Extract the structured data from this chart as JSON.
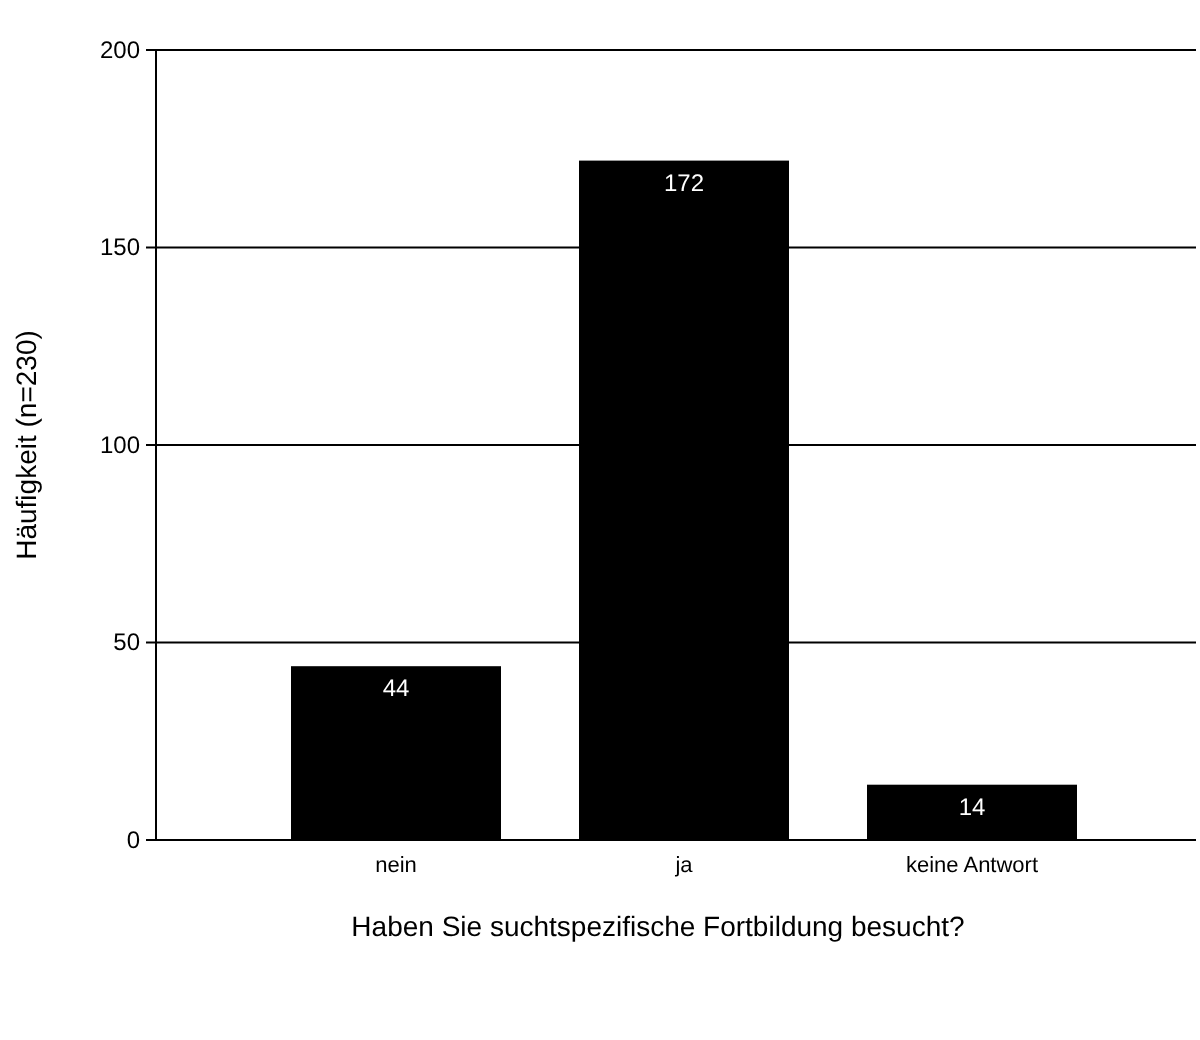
{
  "chart_data": {
    "type": "bar",
    "xlabel": "Haben Sie suchtspezifische Fortbildung besucht?",
    "ylabel": "Häufigkeit (n=230)",
    "categories": [
      "nein",
      "ja",
      "keine Antwort"
    ],
    "values": [
      44,
      172,
      14
    ],
    "color": "#000000",
    "ylim": [
      0,
      200
    ],
    "yticks": [
      0,
      50,
      100,
      150,
      200
    ],
    "grid": "y",
    "data_labels": true
  }
}
